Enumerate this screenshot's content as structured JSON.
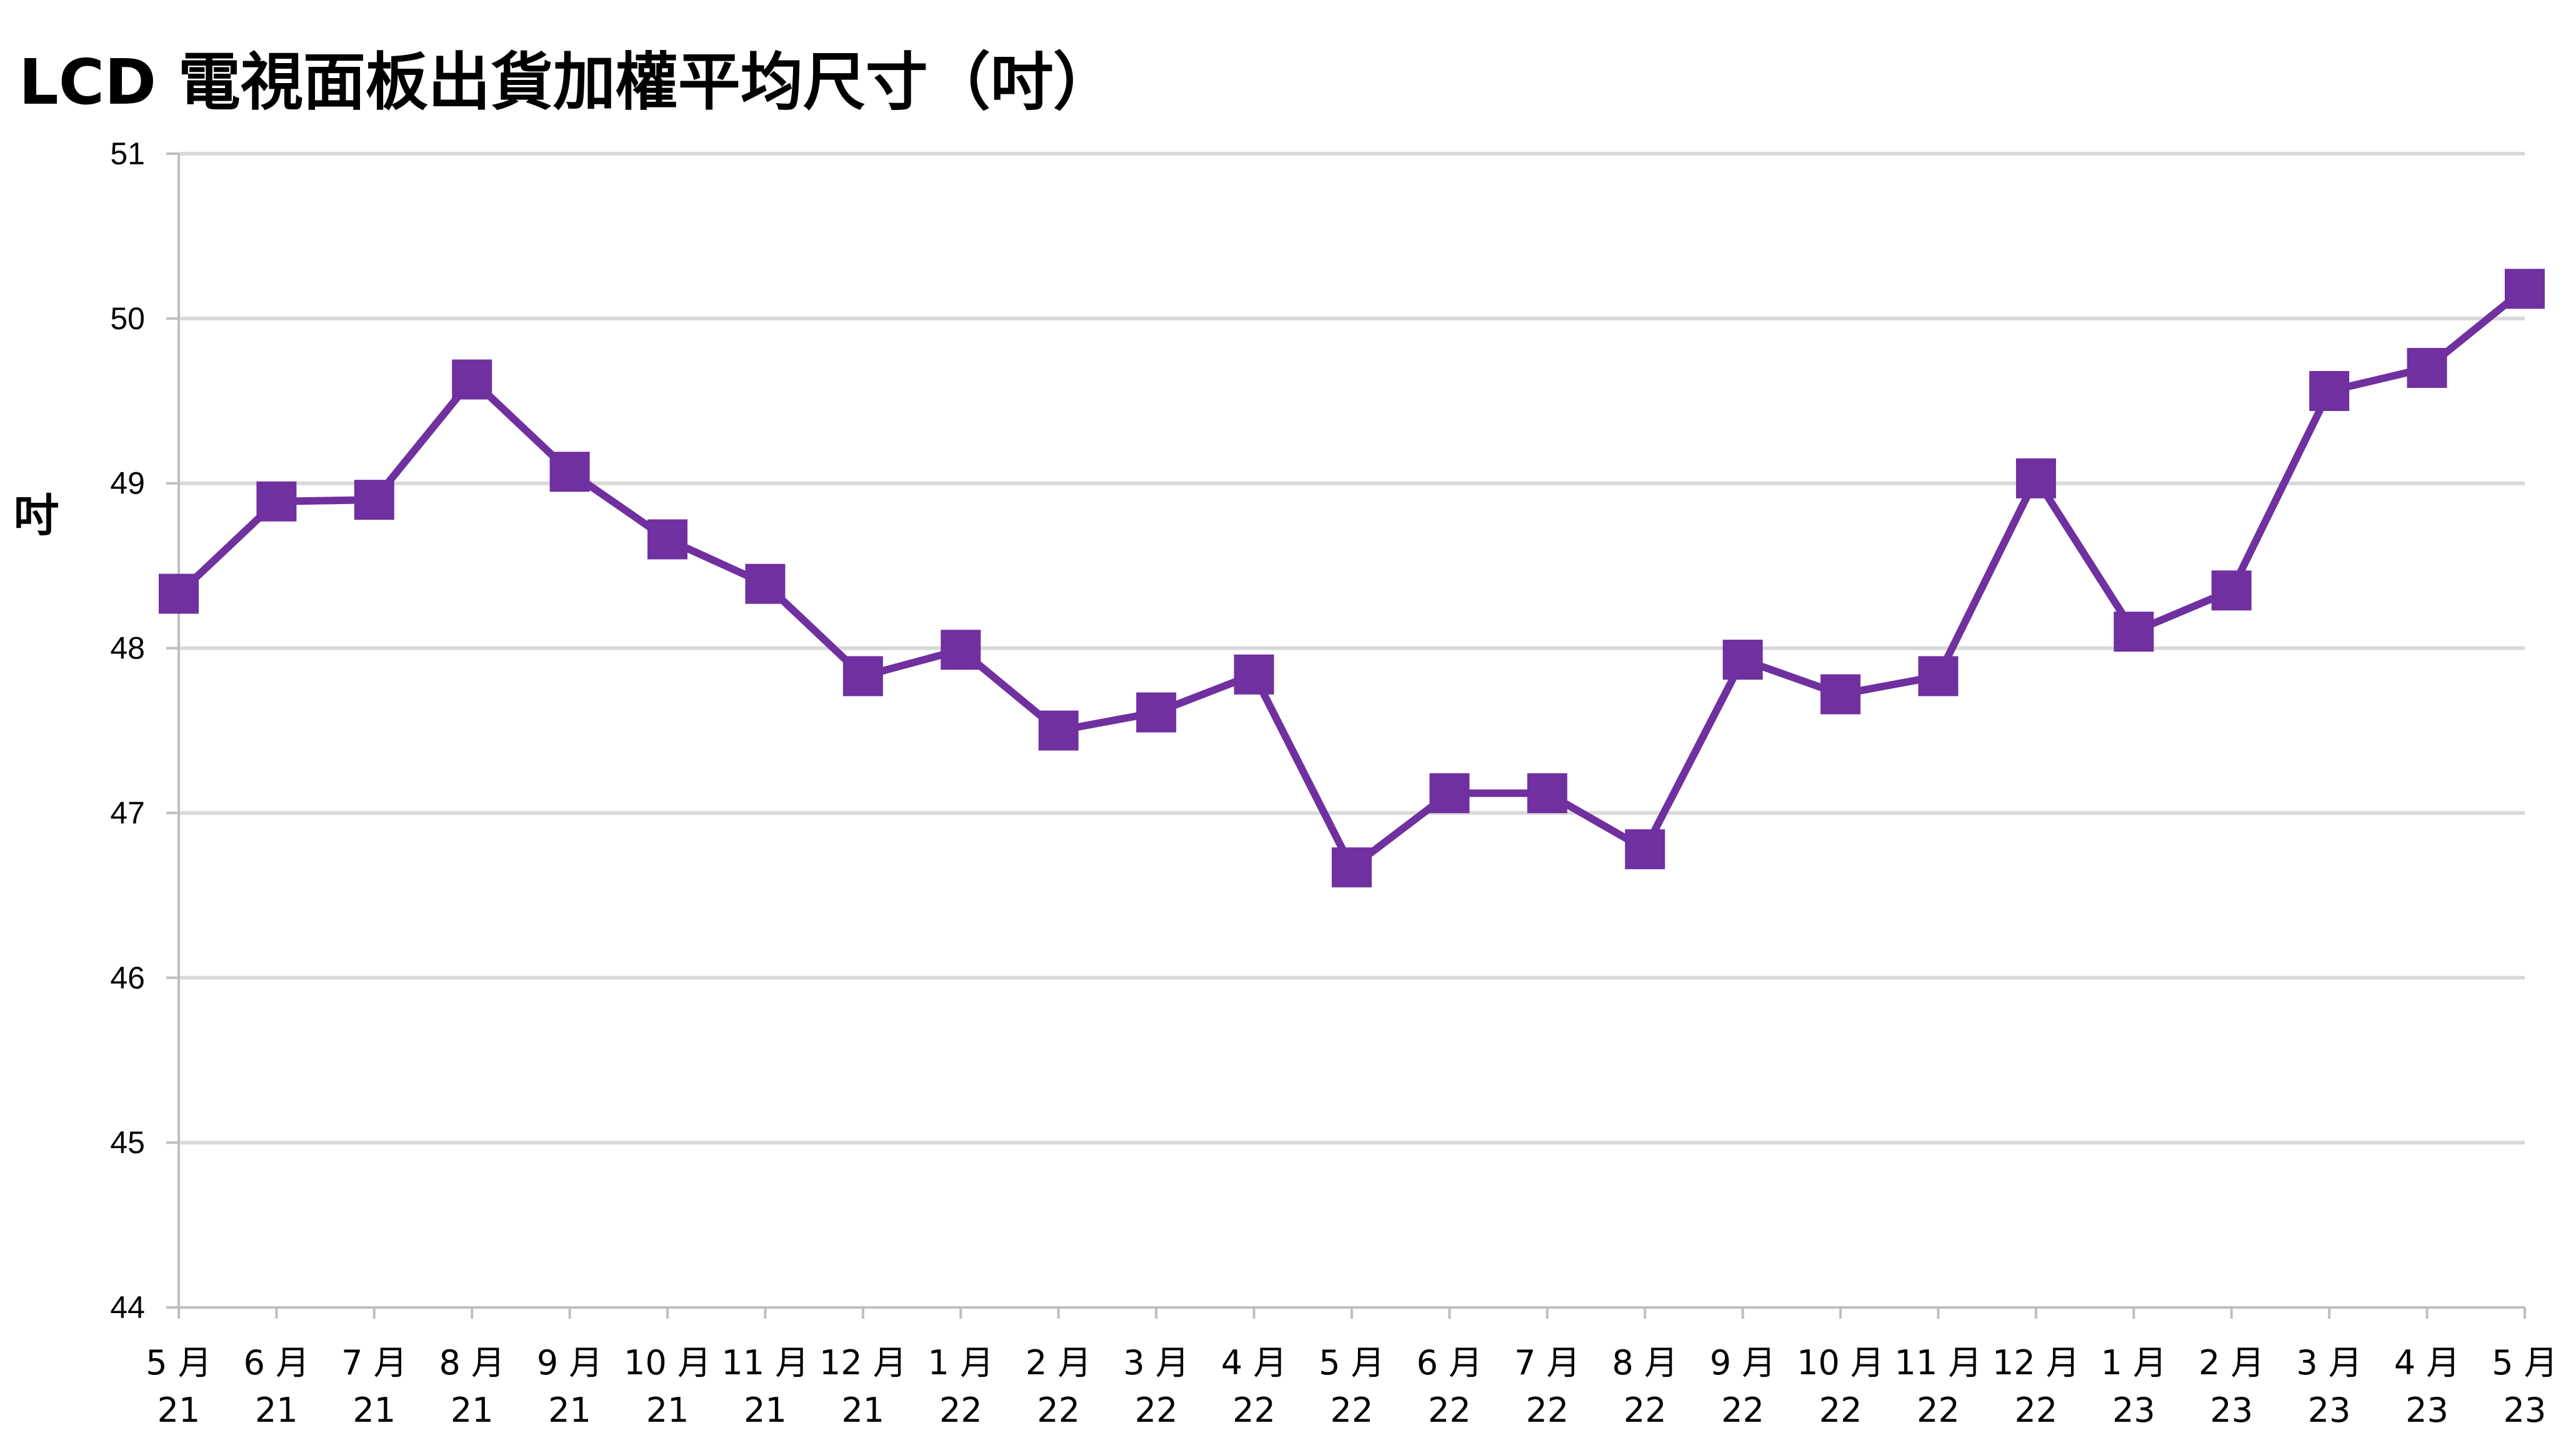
{
  "chart_data": {
    "type": "line",
    "title": "LCD 電視面板出貨加權平均尺寸（吋）",
    "ylabel": "吋",
    "xlabel": "",
    "ylim": [
      44,
      51
    ],
    "yticks": [
      "44",
      "45",
      "46",
      "47",
      "48",
      "49",
      "50",
      "51"
    ],
    "grid": true,
    "legend": "none",
    "series_color": "#7030A0",
    "gridline_color": "#D9D9D9",
    "categories": [
      {
        "month": "5 月",
        "year": "21"
      },
      {
        "month": "6 月",
        "year": "21"
      },
      {
        "month": "7 月",
        "year": "21"
      },
      {
        "month": "8 月",
        "year": "21"
      },
      {
        "month": "9 月",
        "year": "21"
      },
      {
        "month": "10 月",
        "year": "21"
      },
      {
        "month": "11 月",
        "year": "21"
      },
      {
        "month": "12 月",
        "year": "21"
      },
      {
        "month": "1 月",
        "year": "22"
      },
      {
        "month": "2 月",
        "year": "22"
      },
      {
        "month": "3 月",
        "year": "22"
      },
      {
        "month": "4 月",
        "year": "22"
      },
      {
        "month": "5 月",
        "year": "22"
      },
      {
        "month": "6 月",
        "year": "22"
      },
      {
        "month": "7 月",
        "year": "22"
      },
      {
        "month": "8 月",
        "year": "22"
      },
      {
        "month": "9 月",
        "year": "22"
      },
      {
        "month": "10 月",
        "year": "22"
      },
      {
        "month": "11 月",
        "year": "22"
      },
      {
        "month": "12 月",
        "year": "22"
      },
      {
        "month": "1 月",
        "year": "23"
      },
      {
        "month": "2 月",
        "year": "23"
      },
      {
        "month": "3 月",
        "year": "23"
      },
      {
        "month": "4 月",
        "year": "23"
      },
      {
        "month": "5 月",
        "year": "23"
      }
    ],
    "series": [
      {
        "values": [
          48.33,
          48.89,
          48.9,
          49.63,
          49.07,
          48.66,
          48.39,
          47.83,
          47.99,
          47.5,
          47.61,
          47.84,
          46.67,
          47.12,
          47.12,
          46.78,
          47.93,
          47.72,
          47.83,
          49.03,
          48.1,
          48.35,
          49.56,
          49.7,
          50.18
        ]
      }
    ]
  }
}
